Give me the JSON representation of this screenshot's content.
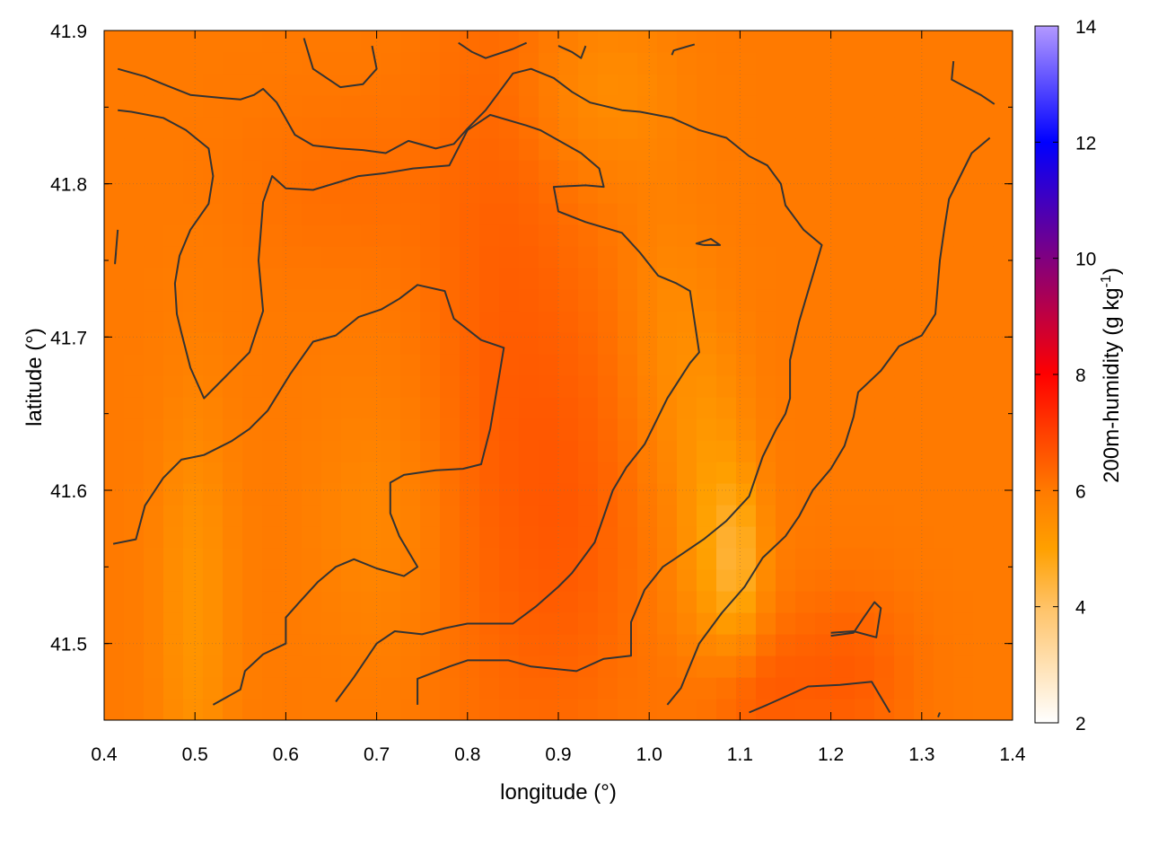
{
  "chart_data": {
    "type": "heatmap",
    "xlabel": "longitude (°)",
    "ylabel": "latitude (°)",
    "colorbar_label_main": "200m-humidity (g kg",
    "colorbar_label_sup": "-1",
    "colorbar_label_end": ")",
    "xlim": [
      0.4,
      1.4
    ],
    "ylim": [
      41.45,
      41.9
    ],
    "x_ticks": [
      0.4,
      0.5,
      0.6,
      0.7,
      0.8,
      0.9,
      1.0,
      1.1,
      1.2,
      1.3,
      1.4
    ],
    "x_tick_labels": [
      "0.4",
      "0.5",
      "0.6",
      "0.7",
      "0.8",
      "0.9",
      "1.0",
      "1.1",
      "1.2",
      "1.3",
      "1.4"
    ],
    "y_ticks": [
      41.5,
      41.6,
      41.7,
      41.8,
      41.9
    ],
    "y_tick_labels": [
      "41.5",
      "41.6",
      "41.7",
      "41.8",
      "41.9"
    ],
    "colorbar_range": [
      2,
      14
    ],
    "colorbar_ticks": [
      2,
      4,
      6,
      8,
      10,
      12,
      14
    ],
    "colorbar_tick_labels": [
      "2",
      "4",
      "6",
      "8",
      "10",
      "12",
      "14"
    ],
    "colormap": [
      {
        "value": 2,
        "color": "#ffffff"
      },
      {
        "value": 4,
        "color": "#ffc266"
      },
      {
        "value": 5,
        "color": "#ffa000"
      },
      {
        "value": 6,
        "color": "#ff7a00"
      },
      {
        "value": 7,
        "color": "#ff4000"
      },
      {
        "value": 8,
        "color": "#ff0000"
      },
      {
        "value": 10,
        "color": "#800080"
      },
      {
        "value": 12,
        "color": "#0000ff"
      },
      {
        "value": 14,
        "color": "#b399ff"
      }
    ],
    "grid": true,
    "field": {
      "base": 6.0,
      "bumps": [
        {
          "x": 0.84,
          "y": 41.7,
          "sx": 0.06,
          "sy": 0.2,
          "dv": 0.45
        },
        {
          "x": 0.92,
          "y": 41.58,
          "sx": 0.05,
          "sy": 0.1,
          "dv": 0.4
        },
        {
          "x": 1.1,
          "y": 41.47,
          "sx": 0.05,
          "sy": 0.03,
          "dv": 0.6
        },
        {
          "x": 1.22,
          "y": 41.48,
          "sx": 0.05,
          "sy": 0.04,
          "dv": 0.5
        },
        {
          "x": 1.07,
          "y": 41.58,
          "sx": 0.03,
          "sy": 0.08,
          "dv": -0.9
        },
        {
          "x": 1.1,
          "y": 41.55,
          "sx": 0.02,
          "sy": 0.04,
          "dv": -1.0
        },
        {
          "x": 0.5,
          "y": 41.52,
          "sx": 0.03,
          "sy": 0.1,
          "dv": -0.7
        },
        {
          "x": 0.95,
          "y": 41.86,
          "sx": 0.06,
          "sy": 0.04,
          "dv": -0.5
        },
        {
          "x": 0.7,
          "y": 41.58,
          "sx": 0.05,
          "sy": 0.06,
          "dv": -0.35
        },
        {
          "x": 1.02,
          "y": 41.7,
          "sx": 0.03,
          "sy": 0.06,
          "dv": -0.4
        },
        {
          "x": 0.66,
          "y": 41.8,
          "sx": 0.08,
          "sy": 0.04,
          "dv": 0.2
        }
      ]
    },
    "contours": [
      [
        [
          0.41,
          41.565
        ],
        [
          0.435,
          41.568
        ],
        [
          0.445,
          41.59
        ],
        [
          0.465,
          41.608
        ],
        [
          0.485,
          41.62
        ],
        [
          0.51,
          41.623
        ],
        [
          0.54,
          41.632
        ],
        [
          0.56,
          41.64
        ],
        [
          0.58,
          41.652
        ],
        [
          0.605,
          41.676
        ],
        [
          0.63,
          41.697
        ],
        [
          0.655,
          41.701
        ],
        [
          0.68,
          41.713
        ],
        [
          0.705,
          41.718
        ],
        [
          0.725,
          41.725
        ],
        [
          0.745,
          41.734
        ],
        [
          0.775,
          41.73
        ],
        [
          0.785,
          41.712
        ],
        [
          0.815,
          41.698
        ],
        [
          0.84,
          41.693
        ],
        [
          0.835,
          41.675
        ],
        [
          0.825,
          41.64
        ],
        [
          0.815,
          41.617
        ],
        [
          0.795,
          41.614
        ],
        [
          0.765,
          41.613
        ],
        [
          0.73,
          41.61
        ],
        [
          0.715,
          41.605
        ],
        [
          0.715,
          41.585
        ],
        [
          0.725,
          41.57
        ],
        [
          0.745,
          41.55
        ],
        [
          0.73,
          41.544
        ],
        [
          0.7,
          41.549
        ],
        [
          0.675,
          41.555
        ],
        [
          0.655,
          41.55
        ],
        [
          0.635,
          41.54
        ],
        [
          0.615,
          41.527
        ],
        [
          0.6,
          41.517
        ],
        [
          0.6,
          41.5
        ],
        [
          0.575,
          41.493
        ],
        [
          0.555,
          41.482
        ],
        [
          0.55,
          41.47
        ],
        [
          0.52,
          41.46
        ]
      ],
      [
        [
          0.655,
          41.462
        ],
        [
          0.675,
          41.478
        ],
        [
          0.7,
          41.5
        ],
        [
          0.72,
          41.508
        ],
        [
          0.75,
          41.506
        ],
        [
          0.775,
          41.51
        ],
        [
          0.8,
          41.513
        ],
        [
          0.85,
          41.513
        ],
        [
          0.875,
          41.524
        ],
        [
          0.9,
          41.537
        ],
        [
          0.915,
          41.546
        ],
        [
          0.94,
          41.566
        ],
        [
          0.96,
          41.6
        ],
        [
          0.975,
          41.615
        ],
        [
          0.995,
          41.63
        ],
        [
          1.005,
          41.642
        ],
        [
          1.02,
          41.66
        ],
        [
          1.045,
          41.683
        ],
        [
          1.055,
          41.69
        ],
        [
          1.045,
          41.73
        ],
        [
          1.03,
          41.735
        ],
        [
          1.01,
          41.74
        ],
        [
          0.99,
          41.755
        ],
        [
          0.97,
          41.768
        ],
        [
          0.93,
          41.775
        ],
        [
          0.9,
          41.782
        ],
        [
          0.895,
          41.798
        ],
        [
          0.93,
          41.799
        ],
        [
          0.95,
          41.798
        ],
        [
          0.945,
          41.81
        ],
        [
          0.925,
          41.82
        ],
        [
          0.88,
          41.835
        ],
        [
          0.865,
          41.838
        ],
        [
          0.825,
          41.845
        ],
        [
          0.8,
          41.835
        ],
        [
          0.78,
          41.812
        ],
        [
          0.74,
          41.81
        ],
        [
          0.71,
          41.807
        ],
        [
          0.68,
          41.805
        ],
        [
          0.63,
          41.796
        ],
        [
          0.6,
          41.797
        ],
        [
          0.585,
          41.805
        ],
        [
          0.575,
          41.788
        ],
        [
          0.57,
          41.75
        ],
        [
          0.575,
          41.717
        ],
        [
          0.56,
          41.69
        ],
        [
          0.535,
          41.675
        ],
        [
          0.51,
          41.66
        ],
        [
          0.495,
          41.68
        ],
        [
          0.485,
          41.703
        ],
        [
          0.48,
          41.715
        ],
        [
          0.478,
          41.735
        ],
        [
          0.483,
          41.753
        ],
        [
          0.495,
          41.77
        ],
        [
          0.515,
          41.787
        ],
        [
          0.52,
          41.805
        ],
        [
          0.515,
          41.823
        ],
        [
          0.49,
          41.835
        ],
        [
          0.465,
          41.843
        ],
        [
          0.43,
          41.847
        ],
        [
          0.415,
          41.848
        ]
      ],
      [
        [
          0.745,
          41.46
        ],
        [
          0.745,
          41.477
        ],
        [
          0.78,
          41.485
        ],
        [
          0.8,
          41.489
        ],
        [
          0.845,
          41.489
        ],
        [
          0.87,
          41.485
        ],
        [
          0.92,
          41.482
        ],
        [
          0.95,
          41.49
        ],
        [
          0.98,
          41.492
        ],
        [
          0.98,
          41.514
        ],
        [
          0.995,
          41.535
        ],
        [
          1.015,
          41.55
        ],
        [
          1.04,
          41.56
        ],
        [
          1.06,
          41.568
        ],
        [
          1.085,
          41.58
        ],
        [
          1.11,
          41.596
        ],
        [
          1.125,
          41.622
        ],
        [
          1.14,
          41.64
        ],
        [
          1.15,
          41.65
        ],
        [
          1.155,
          41.66
        ],
        [
          1.155,
          41.685
        ],
        [
          1.165,
          41.71
        ],
        [
          1.175,
          41.73
        ],
        [
          1.18,
          41.74
        ],
        [
          1.19,
          41.76
        ],
        [
          1.17,
          41.77
        ],
        [
          1.15,
          41.786
        ],
        [
          1.145,
          41.8
        ],
        [
          1.13,
          41.812
        ],
        [
          1.11,
          41.818
        ],
        [
          1.085,
          41.83
        ],
        [
          1.055,
          41.835
        ],
        [
          1.025,
          41.843
        ],
        [
          0.99,
          41.847
        ],
        [
          0.97,
          41.848
        ],
        [
          0.935,
          41.853
        ],
        [
          0.915,
          41.86
        ],
        [
          0.895,
          41.869
        ],
        [
          0.87,
          41.875
        ],
        [
          0.85,
          41.872
        ],
        [
          0.835,
          41.86
        ],
        [
          0.82,
          41.848
        ],
        [
          0.8,
          41.836
        ],
        [
          0.785,
          41.826
        ],
        [
          0.765,
          41.823
        ],
        [
          0.735,
          41.828
        ],
        [
          0.71,
          41.82
        ],
        [
          0.685,
          41.822
        ],
        [
          0.66,
          41.823
        ],
        [
          0.63,
          41.825
        ],
        [
          0.61,
          41.832
        ],
        [
          0.59,
          41.853
        ],
        [
          0.575,
          41.862
        ],
        [
          0.565,
          41.858
        ],
        [
          0.55,
          41.855
        ],
        [
          0.53,
          41.856
        ],
        [
          0.495,
          41.858
        ],
        [
          0.465,
          41.865
        ],
        [
          0.445,
          41.87
        ],
        [
          0.415,
          41.875
        ]
      ],
      [
        [
          1.02,
          41.46
        ],
        [
          1.035,
          41.471
        ],
        [
          1.055,
          41.5
        ],
        [
          1.08,
          41.52
        ],
        [
          1.105,
          41.537
        ],
        [
          1.125,
          41.556
        ],
        [
          1.15,
          41.57
        ],
        [
          1.165,
          41.583
        ],
        [
          1.18,
          41.6
        ],
        [
          1.2,
          41.614
        ],
        [
          1.215,
          41.629
        ],
        [
          1.225,
          41.648
        ],
        [
          1.23,
          41.664
        ],
        [
          1.255,
          41.678
        ],
        [
          1.275,
          41.694
        ],
        [
          1.3,
          41.701
        ],
        [
          1.315,
          41.715
        ],
        [
          1.32,
          41.75
        ],
        [
          1.325,
          41.771
        ],
        [
          1.33,
          41.79
        ],
        [
          1.345,
          41.808
        ],
        [
          1.355,
          41.82
        ],
        [
          1.375,
          41.83
        ]
      ],
      [
        [
          1.11,
          41.455
        ],
        [
          1.13,
          41.46
        ],
        [
          1.145,
          41.464
        ],
        [
          1.175,
          41.472
        ],
        [
          1.21,
          41.473
        ],
        [
          1.245,
          41.475
        ],
        [
          1.265,
          41.455
        ]
      ],
      [
        [
          1.2,
          41.507
        ],
        [
          1.225,
          41.508
        ],
        [
          1.25,
          41.504
        ],
        [
          1.255,
          41.523
        ],
        [
          1.248,
          41.527
        ],
        [
          1.235,
          41.516
        ],
        [
          1.225,
          41.507
        ],
        [
          1.2,
          41.505
        ]
      ],
      [
        [
          1.32,
          41.455
        ],
        [
          1.318,
          41.452
        ]
      ],
      [
        [
          1.06,
          41.76
        ],
        [
          1.078,
          41.76
        ],
        [
          1.068,
          41.764
        ],
        [
          1.052,
          41.761
        ],
        [
          1.06,
          41.76
        ]
      ],
      [
        [
          0.413,
          41.755
        ],
        [
          0.412,
          41.748
        ],
        [
          0.415,
          41.77
        ]
      ],
      [
        [
          1.335,
          41.88
        ],
        [
          1.333,
          41.868
        ],
        [
          1.365,
          41.858
        ],
        [
          1.38,
          41.852
        ]
      ],
      [
        [
          0.62,
          41.895
        ],
        [
          0.63,
          41.875
        ],
        [
          0.66,
          41.863
        ],
        [
          0.685,
          41.865
        ],
        [
          0.7,
          41.875
        ],
        [
          0.695,
          41.89
        ]
      ],
      [
        [
          0.79,
          41.892
        ],
        [
          0.805,
          41.886
        ],
        [
          0.82,
          41.882
        ],
        [
          0.85,
          41.888
        ],
        [
          0.865,
          41.892
        ]
      ],
      [
        [
          0.9,
          41.89
        ],
        [
          0.915,
          41.886
        ],
        [
          0.925,
          41.882
        ],
        [
          0.93,
          41.89
        ]
      ],
      [
        [
          1.025,
          41.884
        ],
        [
          1.027,
          41.887
        ],
        [
          1.05,
          41.891
        ]
      ]
    ]
  }
}
